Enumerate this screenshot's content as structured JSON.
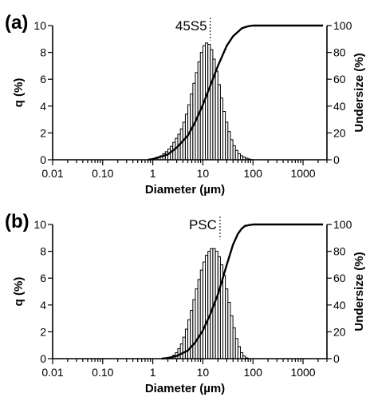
{
  "chart_data": [
    {
      "type": "bar",
      "panel_label": "(a)",
      "sample_label": "45S5",
      "xlabel": "Diameter (µm)",
      "ylabel": "q (%)",
      "y2label": "Undersize (%)",
      "xscale": "log",
      "xlim": [
        0.01,
        3000
      ],
      "ylim": [
        0,
        10
      ],
      "y2lim": [
        0,
        100
      ],
      "xticks": [
        "0.01",
        "0.10",
        "1",
        "10",
        "100",
        "1000"
      ],
      "yticks": [
        "0",
        "2",
        "4",
        "6",
        "8",
        "10"
      ],
      "y2ticks": [
        "0",
        "20",
        "40",
        "60",
        "80",
        "100"
      ],
      "median_um": 14,
      "histogram": {
        "x": [
          1.0,
          1.12,
          1.26,
          1.41,
          1.58,
          1.78,
          2.0,
          2.24,
          2.51,
          2.82,
          3.16,
          3.55,
          3.98,
          4.47,
          5.01,
          5.62,
          6.31,
          7.08,
          7.94,
          8.91,
          10.0,
          11.2,
          12.6,
          14.1,
          15.8,
          17.8,
          20.0,
          22.4,
          25.1,
          28.2,
          31.6,
          35.5,
          39.8,
          44.7,
          50.1,
          56.2,
          63.1,
          70.8,
          79.4,
          89.1
        ],
        "values": [
          0.05,
          0.1,
          0.2,
          0.3,
          0.45,
          0.6,
          0.8,
          1.0,
          1.3,
          1.6,
          1.9,
          2.3,
          2.8,
          3.4,
          4.1,
          4.9,
          5.7,
          6.5,
          7.3,
          8.0,
          8.5,
          8.7,
          8.6,
          8.2,
          7.5,
          6.6,
          5.6,
          4.6,
          3.6,
          2.8,
          2.1,
          1.5,
          1.05,
          0.7,
          0.45,
          0.3,
          0.2,
          0.12,
          0.06,
          0.02
        ]
      },
      "cumulative": {
        "name": "Undersize",
        "x": [
          0.8,
          1.0,
          2.0,
          3.0,
          5.0,
          7.0,
          10.0,
          14.0,
          20.0,
          30.0,
          40.0,
          60.0,
          80.0,
          100.0,
          2500.0
        ],
        "values": [
          0,
          0.5,
          4,
          9,
          18,
          28,
          41,
          55,
          70,
          85,
          92,
          98,
          99.5,
          100,
          100
        ]
      }
    },
    {
      "type": "bar",
      "panel_label": "(b)",
      "sample_label": "PSC",
      "xlabel": "Diameter (µm)",
      "ylabel": "q (%)",
      "y2label": "Undersize (%)",
      "xscale": "log",
      "xlim": [
        0.01,
        3000
      ],
      "ylim": [
        0,
        10
      ],
      "y2lim": [
        0,
        100
      ],
      "xticks": [
        "0.01",
        "0.10",
        "1",
        "10",
        "100",
        "1000"
      ],
      "yticks": [
        "0",
        "2",
        "4",
        "6",
        "8",
        "10"
      ],
      "y2ticks": [
        "0",
        "20",
        "40",
        "60",
        "80",
        "100"
      ],
      "median_um": 22,
      "histogram": {
        "x": [
          2.0,
          2.24,
          2.51,
          2.82,
          3.16,
          3.55,
          3.98,
          4.47,
          5.01,
          5.62,
          6.31,
          7.08,
          7.94,
          8.91,
          10.0,
          11.2,
          12.6,
          14.1,
          15.8,
          17.8,
          20.0,
          22.4,
          25.1,
          28.2,
          31.6,
          35.5,
          39.8,
          44.7,
          50.1,
          56.2,
          63.1,
          70.8
        ],
        "values": [
          0.05,
          0.1,
          0.25,
          0.45,
          0.75,
          1.1,
          1.6,
          2.2,
          2.9,
          3.6,
          4.4,
          5.2,
          5.9,
          6.6,
          7.2,
          7.7,
          8.0,
          8.2,
          8.2,
          8.0,
          7.6,
          7.0,
          6.2,
          5.2,
          4.2,
          3.2,
          2.3,
          1.5,
          0.9,
          0.45,
          0.2,
          0.06
        ]
      },
      "cumulative": {
        "name": "Undersize",
        "x": [
          1.5,
          2.0,
          3.0,
          5.0,
          7.0,
          10.0,
          14.0,
          20.0,
          25.0,
          30.0,
          40.0,
          50.0,
          60.0,
          70.0,
          100.0,
          2500.0
        ],
        "values": [
          0,
          0.5,
          2,
          6,
          12,
          21,
          33,
          48,
          60,
          70,
          85,
          93,
          97,
          99,
          100,
          100
        ]
      }
    }
  ]
}
